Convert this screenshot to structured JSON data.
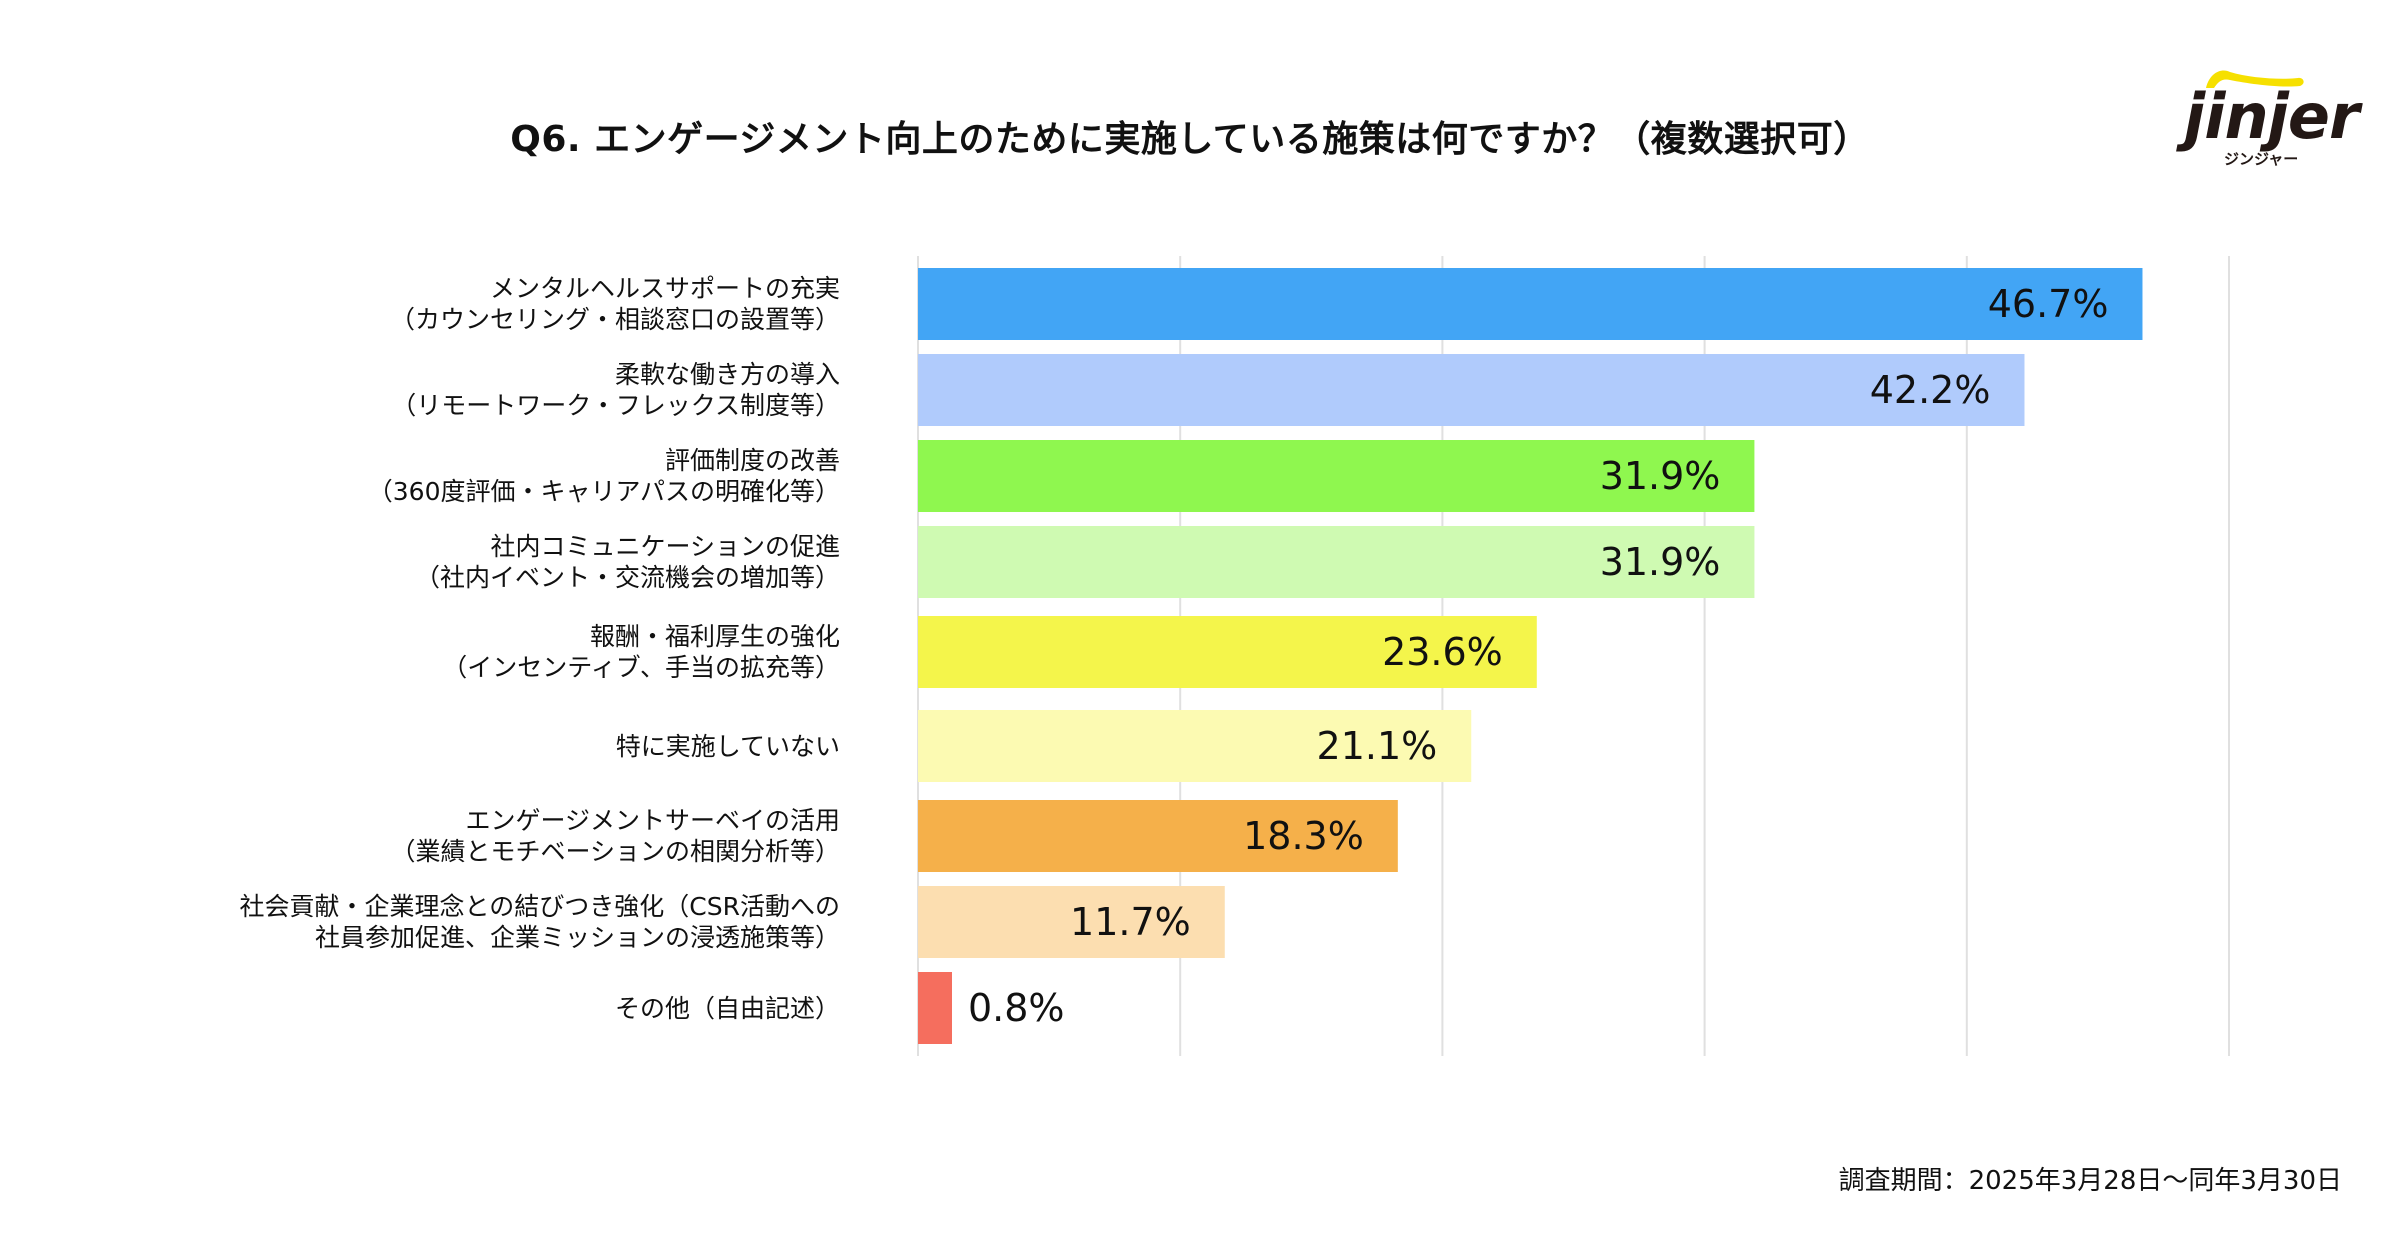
{
  "header": {
    "title": "Q6. エンゲージメント向上のために実施している施策は何ですか？（複数選択可）"
  },
  "logo": {
    "wordmark": "jinjer",
    "kana": "ジンジャー",
    "accent_color": "#F6E000",
    "text_color": "#231815"
  },
  "footer": {
    "survey_period": "調査期間：2025年3月28日～同年3月30日"
  },
  "chart_data": {
    "type": "bar",
    "orientation": "horizontal",
    "title": "Q6. エンゲージメント向上のために実施している施策は何ですか？（複数選択可）",
    "xlabel": "",
    "ylabel": "",
    "xlim": [
      0,
      50
    ],
    "grid_step": 10,
    "grid": true,
    "unit": "%",
    "categories": [
      [
        "メンタルヘルスサポートの充実",
        "（カウンセリング・相談窓口の設置等）"
      ],
      [
        "柔軟な働き方の導入",
        "（リモートワーク・フレックス制度等）"
      ],
      [
        "評価制度の改善",
        "（360度評価・キャリアパスの明確化等）"
      ],
      [
        "社内コミュニケーションの促進",
        "（社内イベント・交流機会の増加等）"
      ],
      [
        "報酬・福利厚生の強化",
        "（インセンティブ、手当の拡充等）"
      ],
      [
        "特に実施していない"
      ],
      [
        "エンゲージメントサーベイの活用",
        "（業績とモチベーションの相関分析等）"
      ],
      [
        "社会貢献・企業理念との結びつき強化（CSR活動への",
        "社員参加促進、企業ミッションの浸透施策等）"
      ],
      [
        "その他（自由記述）"
      ]
    ],
    "values": [
      46.7,
      42.2,
      31.9,
      31.9,
      23.6,
      21.1,
      18.3,
      11.7,
      0.8
    ],
    "value_labels": [
      "46.7%",
      "42.2%",
      "31.9%",
      "31.9%",
      "23.6%",
      "21.1%",
      "18.3%",
      "11.7%",
      "0.8%"
    ],
    "colors": [
      "#42A5F5",
      "#B0CBFC",
      "#8FF74F",
      "#CFFAB2",
      "#F4F54B",
      "#FCFAB2",
      "#F5B04A",
      "#FCDEB0",
      "#F56E5E"
    ],
    "grid_color": "#E0E0E0"
  }
}
